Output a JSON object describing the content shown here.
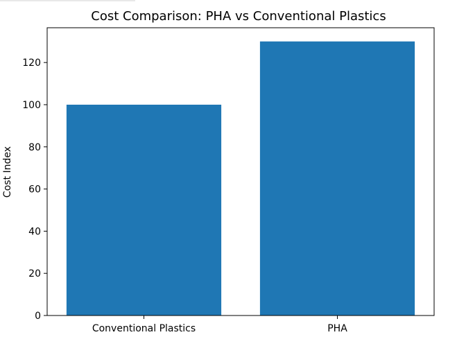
{
  "chart_data": {
    "type": "bar",
    "title": "Cost Comparison: PHA vs Conventional Plastics",
    "xlabel": "",
    "ylabel": "Cost Index",
    "categories": [
      "Conventional Plastics",
      "PHA"
    ],
    "values": [
      100,
      130
    ],
    "ylim": [
      0,
      136.5
    ],
    "yticks": [
      0,
      20,
      40,
      60,
      80,
      100,
      120
    ],
    "grid": false,
    "legend": "none",
    "bar_color": "#1f77b4"
  }
}
